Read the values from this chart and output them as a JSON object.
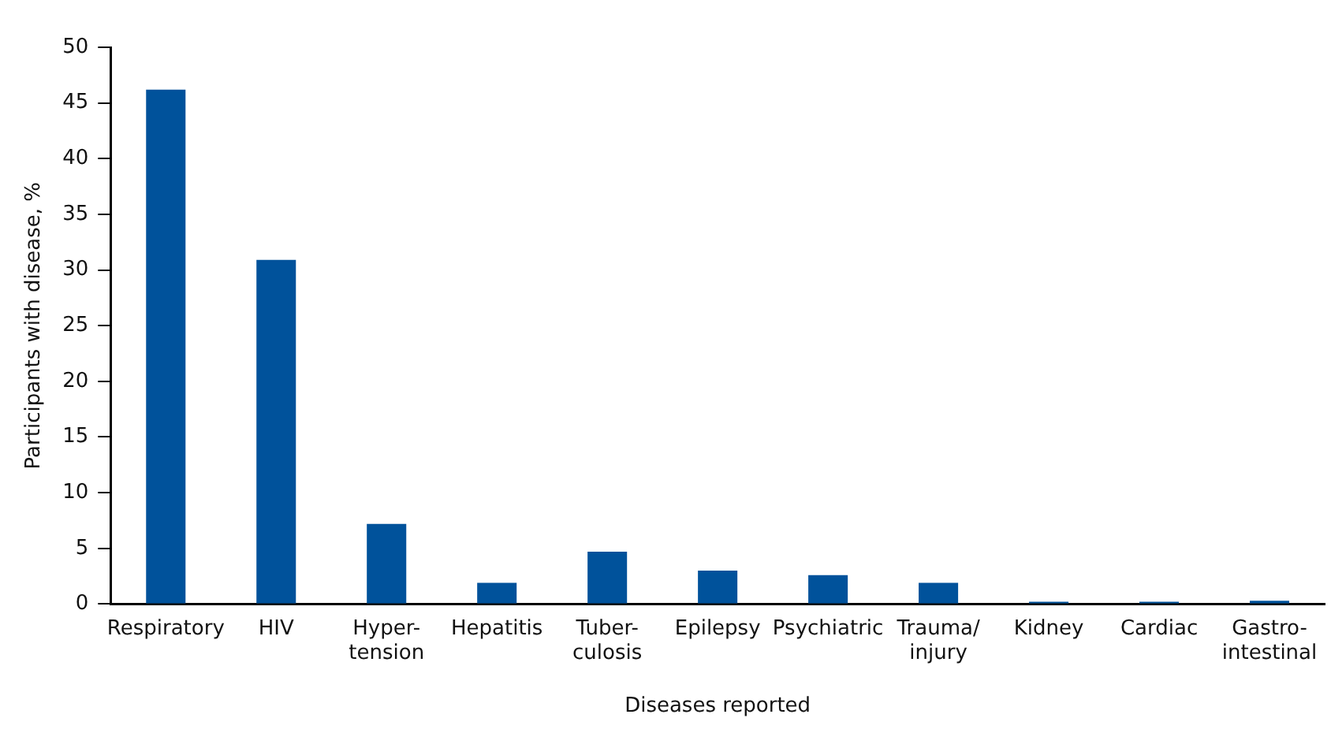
{
  "chart_data": {
    "type": "bar",
    "xlabel": "Diseases reported",
    "ylabel": "Participants with disease, %",
    "categories": [
      "Respiratory",
      "HIV",
      "Hyper-\ntension",
      "Hepatitis",
      "Tuber-\nculosis",
      "Epilepsy",
      "Psychiatric",
      "Trauma/\ninjury",
      "Kidney",
      "Cardiac",
      "Gastro-\nintestinal"
    ],
    "values": [
      46.2,
      30.9,
      7.2,
      1.9,
      4.7,
      3.0,
      2.6,
      1.9,
      0.2,
      0.2,
      0.3
    ],
    "color": "#00529b",
    "ylim": [
      0,
      50
    ],
    "yticks": [
      0,
      5,
      10,
      15,
      20,
      25,
      30,
      35,
      40,
      45,
      50
    ],
    "grid": false,
    "legend": false
  }
}
